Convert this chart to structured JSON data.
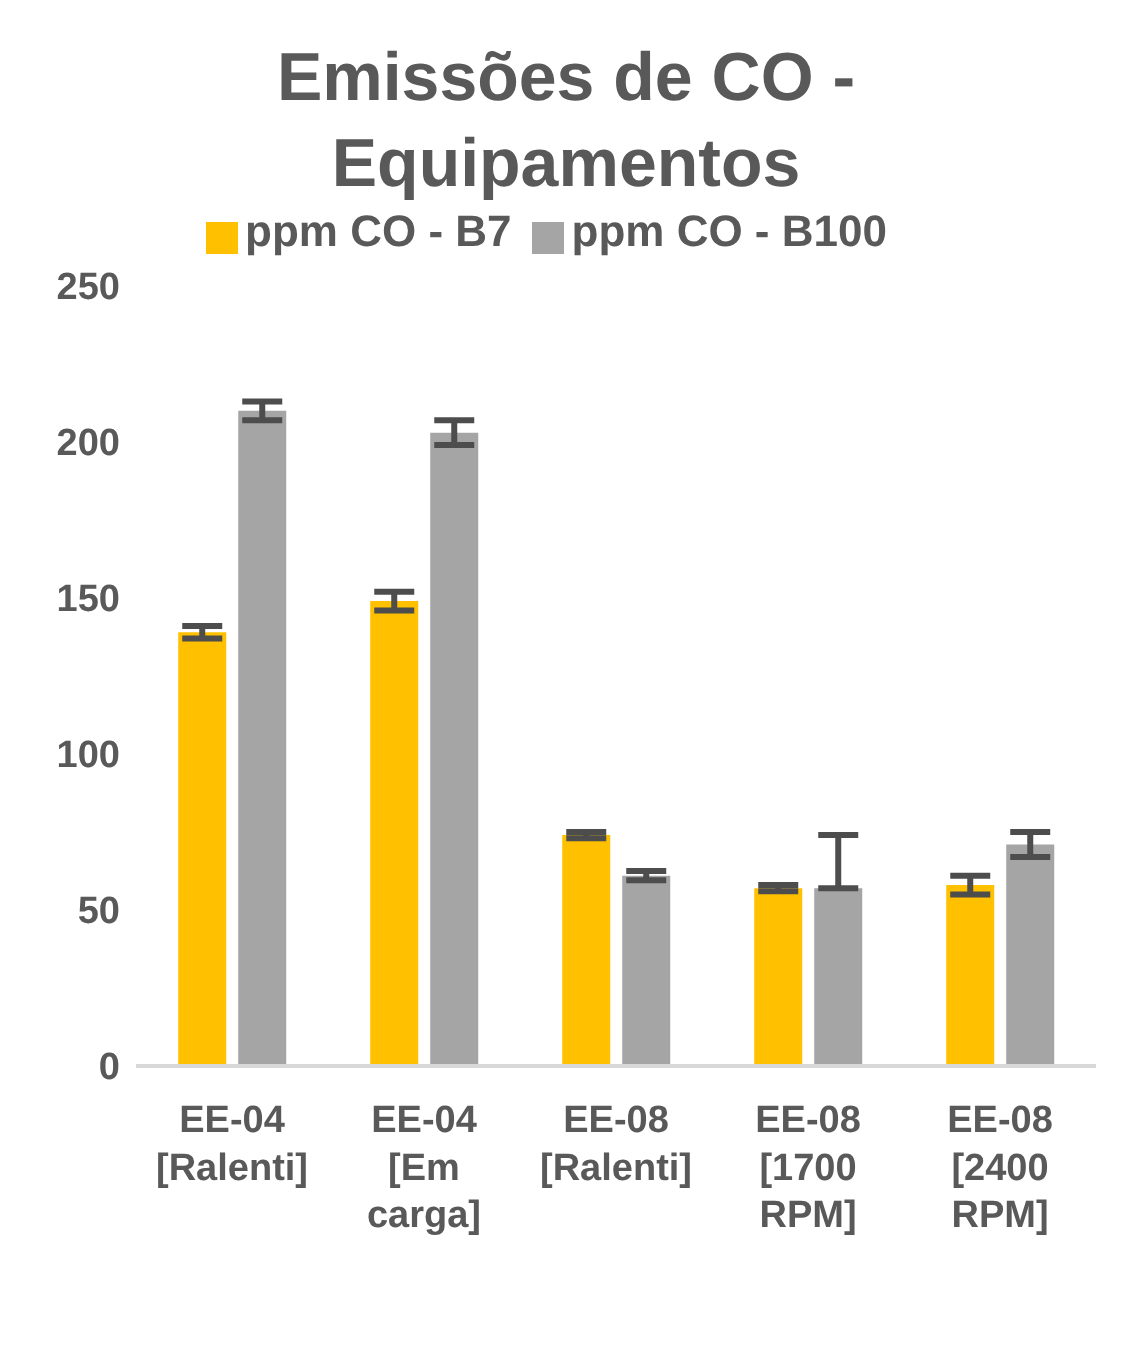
{
  "chart_data": {
    "type": "bar",
    "title": "Emissões de CO - Equipamentos",
    "categories": [
      "EE-04 [Ralenti]",
      "EE-04 [Em carga]",
      "EE-08 [Ralenti]",
      "EE-08 [1700 RPM]",
      "EE-08 [2400 RPM]"
    ],
    "series": [
      {
        "name": "ppm CO - B7",
        "color": "#ffc000",
        "values": [
          139,
          149,
          74,
          57,
          58
        ],
        "errors": [
          2,
          3,
          1,
          1,
          3
        ]
      },
      {
        "name": "ppm CO - B100",
        "color": "#a5a5a5",
        "values": [
          210,
          203,
          61,
          57,
          71
        ],
        "errors": [
          3,
          4,
          1.5,
          [
            57,
            74
          ],
          4
        ]
      }
    ],
    "ylim": [
      0,
      250
    ],
    "yticks": [
      0,
      50,
      100,
      150,
      200,
      250
    ],
    "grid": false,
    "legend": "top"
  }
}
